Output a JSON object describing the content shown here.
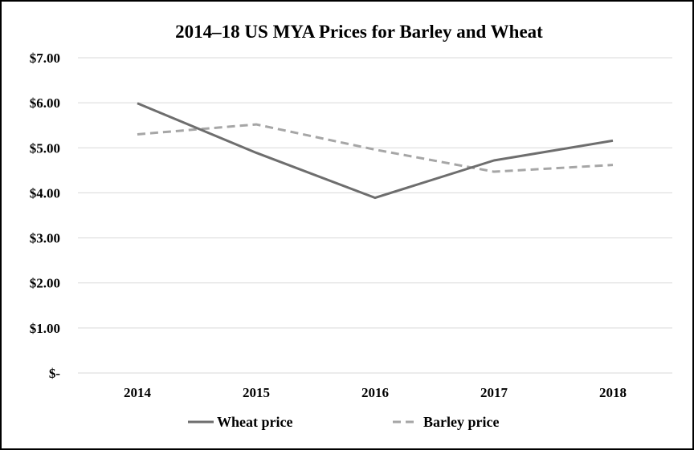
{
  "chart_data": {
    "type": "line",
    "title": "2014–18 US MYA Prices for Barley and Wheat",
    "xlabel": "",
    "ylabel": "",
    "categories": [
      "2014",
      "2015",
      "2016",
      "2017",
      "2018"
    ],
    "y_ticks": [
      {
        "value": 0,
        "label": "$-"
      },
      {
        "value": 1,
        "label": "$1.00"
      },
      {
        "value": 2,
        "label": "$2.00"
      },
      {
        "value": 3,
        "label": "$3.00"
      },
      {
        "value": 4,
        "label": "$4.00"
      },
      {
        "value": 5,
        "label": "$5.00"
      },
      {
        "value": 6,
        "label": "$6.00"
      },
      {
        "value": 7,
        "label": "$7.00"
      }
    ],
    "ylim": [
      0,
      7
    ],
    "grid": true,
    "legend": "bottom",
    "series": [
      {
        "name": "Wheat price",
        "values": [
          5.99,
          4.89,
          3.89,
          4.72,
          5.16
        ],
        "color": "#6e6e6e",
        "style": "solid"
      },
      {
        "name": "Barley price",
        "values": [
          5.3,
          5.52,
          4.96,
          4.47,
          4.62
        ],
        "color": "#a6a6a6",
        "style": "dashed"
      }
    ]
  }
}
